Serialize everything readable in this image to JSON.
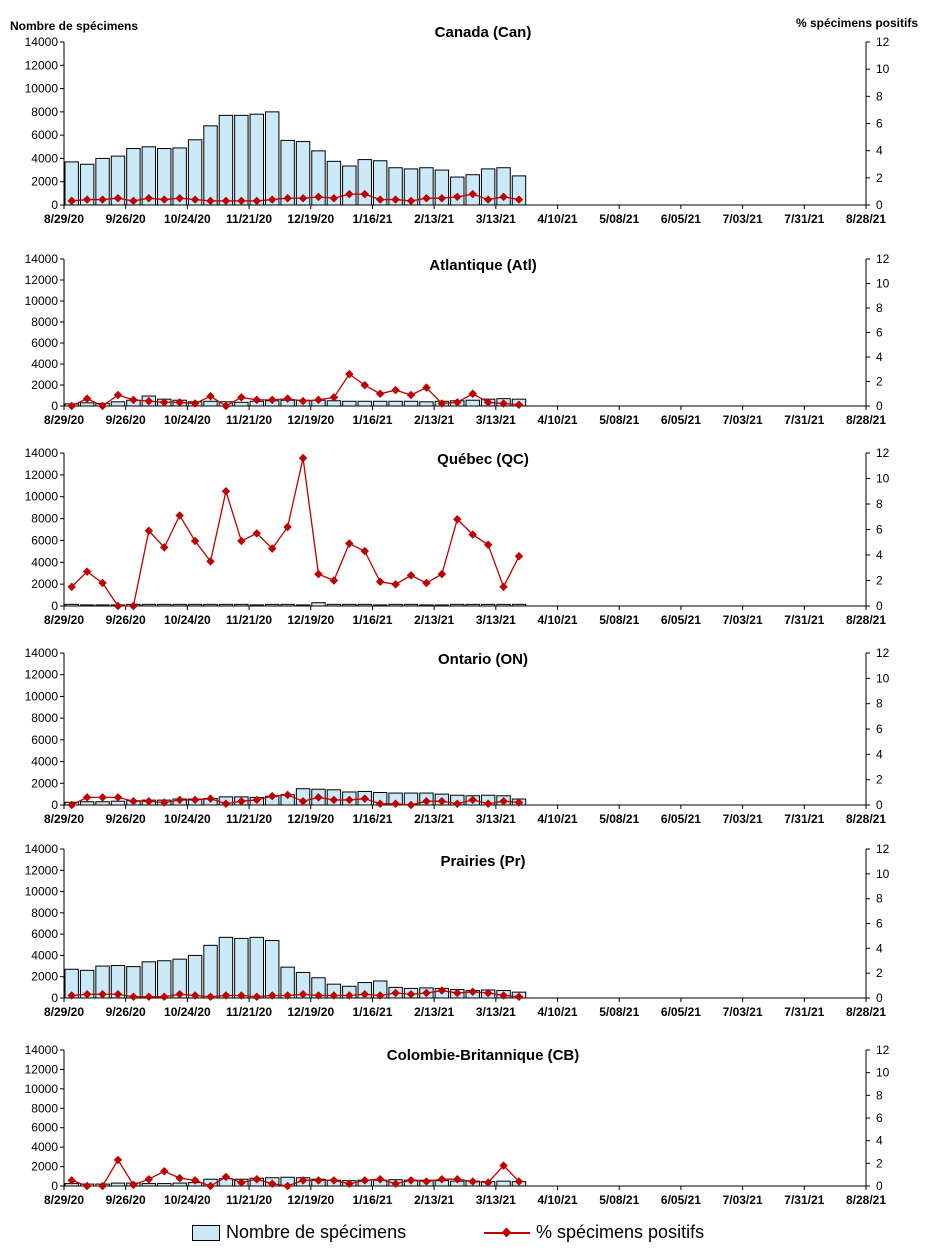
{
  "legend": {
    "bars_label": "Nombre de spécimens",
    "line_label": "% spécimens positifs"
  },
  "colors": {
    "bar_fill": "#cce9f8",
    "line": "#c00000"
  },
  "chart_data": [
    {
      "type": "bar",
      "title": "Canada (Can)",
      "ylabel": "Nombre de spécimens",
      "y2label": "% spécimens positifs",
      "ylim": [
        0,
        14000
      ],
      "y2lim": [
        0,
        12
      ],
      "yticks": [
        0,
        2000,
        4000,
        6000,
        8000,
        10000,
        12000,
        14000
      ],
      "y2ticks": [
        0,
        2,
        4,
        6,
        8,
        10,
        12
      ],
      "xtick_labels": [
        "8/29/20",
        "9/26/20",
        "10/24/20",
        "11/21/20",
        "12/19/20",
        "1/16/21",
        "2/13/21",
        "3/13/21",
        "4/10/21",
        "5/08/21",
        "6/05/21",
        "7/03/21",
        "7/31/21",
        "8/28/21"
      ],
      "series": [
        {
          "name": "Nombre de spécimens",
          "values": [
            3700,
            3500,
            4000,
            4200,
            4850,
            5000,
            4850,
            4900,
            5600,
            6800,
            7700,
            7700,
            7800,
            8000,
            5550,
            5450,
            4650,
            3750,
            3350,
            3900,
            3800,
            3200,
            3100,
            3200,
            3000,
            2400,
            2600,
            3100,
            3200,
            2500
          ]
        },
        {
          "name": "% spécimens positifs",
          "values": [
            0.3,
            0.4,
            0.4,
            0.5,
            0.3,
            0.5,
            0.4,
            0.5,
            0.4,
            0.3,
            0.3,
            0.3,
            0.3,
            0.4,
            0.5,
            0.5,
            0.6,
            0.5,
            0.8,
            0.8,
            0.4,
            0.4,
            0.3,
            0.5,
            0.5,
            0.6,
            0.8,
            0.4,
            0.6,
            0.4
          ]
        }
      ]
    },
    {
      "type": "bar",
      "title": "Atlantique (Atl)",
      "ylim": [
        0,
        14000
      ],
      "y2lim": [
        0,
        12
      ],
      "yticks": [
        0,
        2000,
        4000,
        6000,
        8000,
        10000,
        12000,
        14000
      ],
      "y2ticks": [
        0,
        2,
        4,
        6,
        8,
        10,
        12
      ],
      "xtick_labels": [
        "8/29/20",
        "9/26/20",
        "10/24/20",
        "11/21/20",
        "12/19/20",
        "1/16/21",
        "2/13/21",
        "3/13/21",
        "4/10/21",
        "5/08/21",
        "6/05/21",
        "7/03/21",
        "7/31/21",
        "8/28/21"
      ],
      "series": [
        {
          "name": "Nombre de spécimens",
          "values": [
            200,
            300,
            250,
            400,
            550,
            950,
            650,
            550,
            400,
            450,
            400,
            350,
            450,
            500,
            550,
            550,
            550,
            500,
            450,
            450,
            450,
            450,
            450,
            400,
            450,
            500,
            550,
            650,
            700,
            650
          ]
        },
        {
          "name": "% spécimens positifs",
          "values": [
            0.0,
            0.6,
            0.0,
            0.9,
            0.5,
            0.4,
            0.3,
            0.3,
            0.2,
            0.8,
            0.0,
            0.7,
            0.5,
            0.5,
            0.6,
            0.4,
            0.5,
            0.7,
            2.6,
            1.7,
            1.0,
            1.3,
            0.9,
            1.5,
            0.2,
            0.3,
            1.0,
            0.3,
            0.2,
            0.1
          ]
        }
      ]
    },
    {
      "type": "bar",
      "title": "Québec (QC)",
      "ylim": [
        0,
        14000
      ],
      "y2lim": [
        0,
        12
      ],
      "yticks": [
        0,
        2000,
        4000,
        6000,
        8000,
        10000,
        12000,
        14000
      ],
      "y2ticks": [
        0,
        2,
        4,
        6,
        8,
        10,
        12
      ],
      "xtick_labels": [
        "8/29/20",
        "9/26/20",
        "10/24/20",
        "11/21/20",
        "12/19/20",
        "1/16/21",
        "2/13/21",
        "3/13/21",
        "4/10/21",
        "5/08/21",
        "6/05/21",
        "7/03/21",
        "7/31/21",
        "8/28/21"
      ],
      "series": [
        {
          "name": "Nombre de spécimens",
          "values": [
            150,
            100,
            100,
            100,
            150,
            150,
            150,
            150,
            150,
            150,
            150,
            150,
            100,
            150,
            150,
            100,
            300,
            150,
            150,
            150,
            100,
            150,
            150,
            100,
            100,
            150,
            150,
            150,
            150,
            150
          ]
        },
        {
          "name": "% spécimens positifs",
          "values": [
            1.5,
            2.7,
            1.8,
            0.0,
            0.0,
            5.9,
            4.6,
            7.1,
            5.1,
            3.5,
            9.0,
            5.1,
            5.7,
            4.5,
            6.2,
            11.6,
            2.5,
            2.0,
            4.9,
            4.3,
            1.9,
            1.7,
            2.4,
            1.8,
            2.5,
            6.8,
            5.6,
            4.8,
            1.5,
            3.9
          ]
        }
      ]
    },
    {
      "type": "bar",
      "title": "Ontario (ON)",
      "ylim": [
        0,
        14000
      ],
      "y2lim": [
        0,
        12
      ],
      "yticks": [
        0,
        2000,
        4000,
        6000,
        8000,
        10000,
        12000,
        14000
      ],
      "y2ticks": [
        0,
        2,
        4,
        6,
        8,
        10,
        12
      ],
      "xtick_labels": [
        "8/29/20",
        "9/26/20",
        "10/24/20",
        "11/21/20",
        "12/19/20",
        "1/16/21",
        "2/13/21",
        "3/13/21",
        "4/10/21",
        "5/08/21",
        "6/05/21",
        "7/03/21",
        "7/31/21",
        "8/28/21"
      ],
      "series": [
        {
          "name": "Nombre de spécimens",
          "values": [
            250,
            300,
            300,
            350,
            400,
            450,
            450,
            550,
            550,
            600,
            750,
            750,
            700,
            800,
            950,
            1500,
            1450,
            1400,
            1200,
            1250,
            1150,
            1100,
            1100,
            1100,
            1000,
            900,
            850,
            900,
            850,
            550
          ]
        },
        {
          "name": "% spécimens positifs",
          "values": [
            0.0,
            0.6,
            0.6,
            0.6,
            0.3,
            0.3,
            0.2,
            0.4,
            0.4,
            0.5,
            0.1,
            0.3,
            0.4,
            0.7,
            0.8,
            0.3,
            0.6,
            0.4,
            0.4,
            0.5,
            0.1,
            0.1,
            0.0,
            0.3,
            0.3,
            0.1,
            0.4,
            0.1,
            0.3,
            0.2
          ]
        }
      ]
    },
    {
      "type": "bar",
      "title": "Prairies (Pr)",
      "ylim": [
        0,
        14000
      ],
      "y2lim": [
        0,
        12
      ],
      "yticks": [
        0,
        2000,
        4000,
        6000,
        8000,
        10000,
        12000,
        14000
      ],
      "y2ticks": [
        0,
        2,
        4,
        6,
        8,
        10,
        12
      ],
      "xtick_labels": [
        "8/29/20",
        "9/26/20",
        "10/24/20",
        "11/21/20",
        "12/19/20",
        "1/16/21",
        "2/13/21",
        "3/13/21",
        "4/10/21",
        "5/08/21",
        "6/05/21",
        "7/03/21",
        "7/31/21",
        "8/28/21"
      ],
      "series": [
        {
          "name": "Nombre de spécimens",
          "values": [
            2700,
            2600,
            3000,
            3050,
            2950,
            3400,
            3500,
            3650,
            4000,
            4950,
            5700,
            5600,
            5700,
            5400,
            2900,
            2400,
            1900,
            1300,
            1100,
            1450,
            1600,
            1000,
            900,
            950,
            900,
            800,
            700,
            750,
            700,
            550
          ]
        },
        {
          "name": "% spécimens positifs",
          "values": [
            0.2,
            0.3,
            0.3,
            0.3,
            0.1,
            0.1,
            0.1,
            0.3,
            0.2,
            0.1,
            0.2,
            0.2,
            0.1,
            0.2,
            0.2,
            0.3,
            0.2,
            0.2,
            0.2,
            0.3,
            0.2,
            0.4,
            0.3,
            0.4,
            0.6,
            0.4,
            0.5,
            0.4,
            0.2,
            0.1
          ]
        }
      ]
    },
    {
      "type": "bar",
      "title": "Colombie-Britannique (CB)",
      "ylim": [
        0,
        14000
      ],
      "y2lim": [
        0,
        12
      ],
      "yticks": [
        0,
        2000,
        4000,
        6000,
        8000,
        10000,
        12000,
        14000
      ],
      "y2ticks": [
        0,
        2,
        4,
        6,
        8,
        10,
        12
      ],
      "xtick_labels": [
        "8/29/20",
        "9/26/20",
        "10/24/20",
        "11/21/20",
        "12/19/20",
        "1/16/21",
        "2/13/21",
        "3/13/21",
        "4/10/21",
        "5/08/21",
        "6/05/21",
        "7/03/21",
        "7/31/21",
        "8/28/21"
      ],
      "series": [
        {
          "name": "Nombre de spécimens",
          "values": [
            250,
            200,
            200,
            300,
            300,
            250,
            250,
            300,
            350,
            700,
            750,
            700,
            800,
            850,
            900,
            850,
            700,
            600,
            550,
            600,
            600,
            650,
            600,
            600,
            550,
            500,
            500,
            450,
            500,
            450
          ]
        },
        {
          "name": "% spécimens positifs",
          "values": [
            0.5,
            0.0,
            0.0,
            2.3,
            0.1,
            0.6,
            1.3,
            0.7,
            0.5,
            0.0,
            0.8,
            0.3,
            0.6,
            0.2,
            0.0,
            0.5,
            0.5,
            0.5,
            0.2,
            0.5,
            0.6,
            0.2,
            0.5,
            0.4,
            0.6,
            0.6,
            0.4,
            0.3,
            1.8,
            0.4
          ]
        }
      ]
    }
  ]
}
